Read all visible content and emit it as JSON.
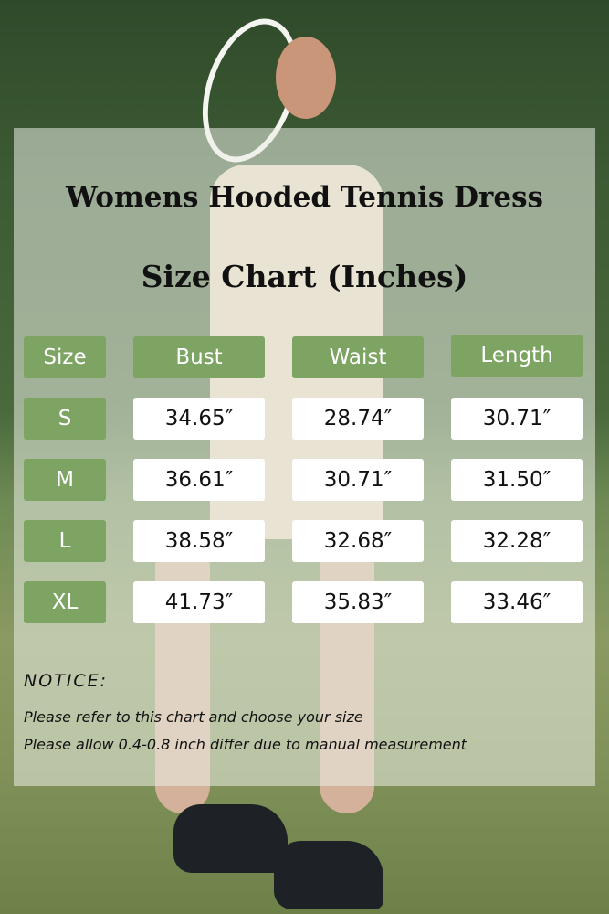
{
  "title": "Womens Hooded Tennis Dress",
  "subtitle": "Size Chart (Inches)",
  "colors": {
    "header_green": "#7da463",
    "value_bg": "#ffffff"
  },
  "table": {
    "headers": [
      "Size",
      "Bust",
      "Waist",
      "Length"
    ],
    "rows": [
      [
        "S",
        "34.65″",
        "28.74″",
        "30.71″"
      ],
      [
        "M",
        "36.61″",
        "30.71″",
        "31.50″"
      ],
      [
        "L",
        "38.58″",
        "32.68″",
        "32.28″"
      ],
      [
        "XL",
        "41.73″",
        "35.83″",
        "33.46″"
      ]
    ]
  },
  "notice": {
    "heading": "NOTICE:",
    "lines": [
      "Please refer to this chart and choose your size",
      "Please allow 0.4-0.8 inch differ due to manual measurement"
    ]
  }
}
